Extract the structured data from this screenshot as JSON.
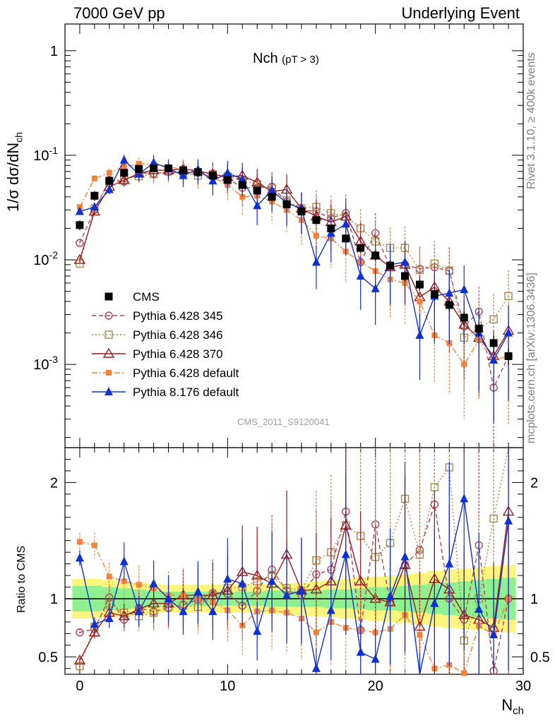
{
  "header": {
    "left": "7000 GeV pp",
    "right": "Underlying Event"
  },
  "plot_title": {
    "main": "Nch",
    "sub": "(pT >  3)"
  },
  "side_text": {
    "rivet": "Rivet 3.1.10, ≥ 400k events",
    "mcplots": "mcplots.cern.ch [arXiv:1306.3436]"
  },
  "watermark": "CMS_2011_S9120041",
  "axis": {
    "main_ylabel": "1/σ dσ/dN",
    "main_ylabel_sub": "ch",
    "ratio_ylabel": "Ratio to CMS",
    "xlabel": "N",
    "xlabel_sub": "ch"
  },
  "chart_data": {
    "type": "scatter",
    "x_ticks": [
      "0",
      "10",
      "20",
      "30"
    ],
    "xlim": [
      -1,
      30
    ],
    "main": {
      "yscale": "log",
      "ylim": [
        0.00016,
        1.8
      ],
      "y_ticks": [
        "10^-3",
        "10^-2",
        "10^-1",
        "1"
      ]
    },
    "ratio": {
      "ylim": [
        0.35,
        2.3
      ],
      "y_ticks": [
        "0.5",
        "1",
        "2"
      ]
    },
    "legend_position": "lower-left",
    "x": [
      0,
      1,
      2,
      3,
      4,
      5,
      6,
      7,
      8,
      9,
      10,
      11,
      12,
      13,
      14,
      15,
      16,
      17,
      18,
      19,
      20,
      21,
      22,
      23,
      24,
      25,
      26,
      27,
      28,
      29
    ],
    "series": [
      {
        "name": "CMS",
        "color": "#000000",
        "marker": "square-filled",
        "values": [
          0.0215,
          0.041,
          0.057,
          0.068,
          0.074,
          0.075,
          0.075,
          0.072,
          0.069,
          0.064,
          0.058,
          0.052,
          0.046,
          0.04,
          0.034,
          0.029,
          0.024,
          0.02,
          0.016,
          0.013,
          0.011,
          0.0088,
          0.007,
          0.0058,
          0.0047,
          0.0037,
          0.0028,
          0.0022,
          0.0016,
          0.0012
        ],
        "band_inner": [
          0.11,
          0.11,
          0.1,
          0.09,
          0.08,
          0.07,
          0.06,
          0.06,
          0.06,
          0.06,
          0.06,
          0.06,
          0.06,
          0.07,
          0.07,
          0.07,
          0.07,
          0.08,
          0.08,
          0.09,
          0.1,
          0.1,
          0.11,
          0.12,
          0.13,
          0.14,
          0.15,
          0.16,
          0.17,
          0.18
        ],
        "band_outer": [
          0.17,
          0.17,
          0.16,
          0.15,
          0.14,
          0.13,
          0.12,
          0.12,
          0.12,
          0.12,
          0.12,
          0.12,
          0.12,
          0.13,
          0.13,
          0.14,
          0.15,
          0.16,
          0.17,
          0.18,
          0.19,
          0.2,
          0.21,
          0.22,
          0.24,
          0.25,
          0.26,
          0.27,
          0.28,
          0.29
        ]
      },
      {
        "name": "Pythia 6.428 345",
        "color": "#b0415b",
        "marker": "circle-open",
        "dash": "6,4",
        "values": [
          0.0145,
          0.03,
          0.058,
          0.056,
          0.068,
          0.067,
          0.069,
          0.068,
          0.068,
          0.067,
          0.06,
          0.049,
          0.049,
          0.05,
          0.036,
          0.03,
          0.029,
          0.025,
          0.028,
          0.0095,
          0.018,
          0.0085,
          0.009,
          0.0082,
          0.0085,
          0.0078,
          0.0023,
          0.0032,
          0.0006,
          0.0012
        ],
        "ratio": [
          0.71,
          0.74,
          1.01,
          0.82,
          0.92,
          0.89,
          0.92,
          0.95,
          0.99,
          1.05,
          1.04,
          0.94,
          1.07,
          1.25,
          1.07,
          1.03,
          1.21,
          1.25,
          1.75,
          0.73,
          1.64,
          0.97,
          1.29,
          1.42,
          1.81,
          1.0,
          0.82,
          1.46,
          0.38,
          1.0
        ]
      },
      {
        "name": "Pythia 6.428 346",
        "color": "#a88a4c",
        "marker": "square-open",
        "dash": "2,3",
        "values": [
          0.0092,
          0.031,
          0.055,
          0.06,
          0.063,
          0.066,
          0.07,
          0.068,
          0.064,
          0.066,
          0.063,
          0.057,
          0.053,
          0.048,
          0.037,
          0.031,
          0.032,
          0.028,
          0.026,
          0.02,
          0.015,
          0.013,
          0.013,
          0.008,
          0.0092,
          0.0079,
          0.0018,
          0.0022,
          0.0027,
          0.0045
        ],
        "ratio": [
          0.42,
          0.76,
          0.96,
          0.88,
          0.85,
          0.88,
          0.93,
          0.94,
          0.93,
          1.03,
          1.09,
          1.1,
          1.15,
          1.2,
          1.09,
          1.07,
          1.33,
          1.4,
          1.63,
          1.54,
          1.36,
          1.48,
          1.86,
          1.38,
          1.96,
          2.13,
          0.64,
          1.0,
          1.69,
          3.75
        ]
      },
      {
        "name": "Pythia 6.428 370",
        "color": "#9b1b1e",
        "marker": "triangle-open",
        "dash": "",
        "values": [
          0.01,
          0.029,
          0.05,
          0.058,
          0.067,
          0.072,
          0.072,
          0.074,
          0.071,
          0.066,
          0.062,
          0.064,
          0.055,
          0.045,
          0.047,
          0.031,
          0.026,
          0.023,
          0.026,
          0.015,
          0.011,
          0.0085,
          0.009,
          0.0044,
          0.0055,
          0.004,
          0.0024,
          0.0018,
          0.0012,
          0.0021
        ],
        "ratio": [
          0.47,
          0.71,
          0.88,
          0.85,
          0.91,
          0.96,
          0.96,
          1.03,
          1.03,
          1.03,
          1.07,
          1.23,
          1.2,
          1.13,
          1.38,
          1.07,
          1.08,
          1.15,
          1.63,
          1.15,
          1.0,
          0.97,
          1.29,
          0.76,
          1.17,
          1.08,
          0.86,
          0.82,
          0.75,
          1.75
        ]
      },
      {
        "name": "Pythia 6.428 default",
        "color": "#f5823a",
        "marker": "square-filled-small",
        "dash": "8,3,2,3",
        "values": [
          0.032,
          0.06,
          0.068,
          0.078,
          0.083,
          0.082,
          0.077,
          0.074,
          0.068,
          0.062,
          0.052,
          0.04,
          0.041,
          0.036,
          0.03,
          0.024,
          0.017,
          0.016,
          0.012,
          0.0095,
          0.0078,
          0.0065,
          0.006,
          0.004,
          0.0019,
          0.0016,
          0.001,
          0.0017,
          0.0011,
          0.0012
        ],
        "ratio": [
          1.49,
          1.46,
          1.19,
          1.15,
          1.12,
          1.09,
          1.03,
          1.03,
          0.99,
          0.97,
          0.9,
          0.77,
          0.89,
          0.9,
          0.88,
          0.83,
          0.71,
          0.8,
          0.75,
          0.73,
          0.71,
          0.74,
          0.86,
          0.69,
          0.4,
          0.43,
          0.36,
          0.77,
          0.69,
          1.0
        ]
      },
      {
        "name": "Pythia 8.176 default",
        "color": "#1030d0",
        "marker": "triangle-filled",
        "dash": "",
        "values": [
          0.029,
          0.032,
          0.047,
          0.09,
          0.066,
          0.085,
          0.075,
          0.064,
          0.073,
          0.057,
          0.068,
          0.059,
          0.033,
          0.046,
          0.035,
          0.031,
          0.0095,
          0.018,
          0.022,
          0.007,
          0.0053,
          0.009,
          0.0095,
          0.0019,
          0.0045,
          0.0048,
          0.0052,
          0.002,
          0.0011,
          0.002
        ],
        "ratio": [
          1.35,
          0.78,
          0.83,
          1.32,
          0.89,
          1.13,
          1.0,
          0.89,
          1.06,
          0.89,
          1.17,
          1.13,
          0.72,
          1.15,
          1.03,
          1.07,
          0.4,
          0.9,
          1.38,
          0.54,
          0.48,
          1.02,
          1.36,
          0.33,
          0.96,
          1.3,
          1.86,
          0.91,
          0.69,
          1.67
        ]
      }
    ]
  }
}
